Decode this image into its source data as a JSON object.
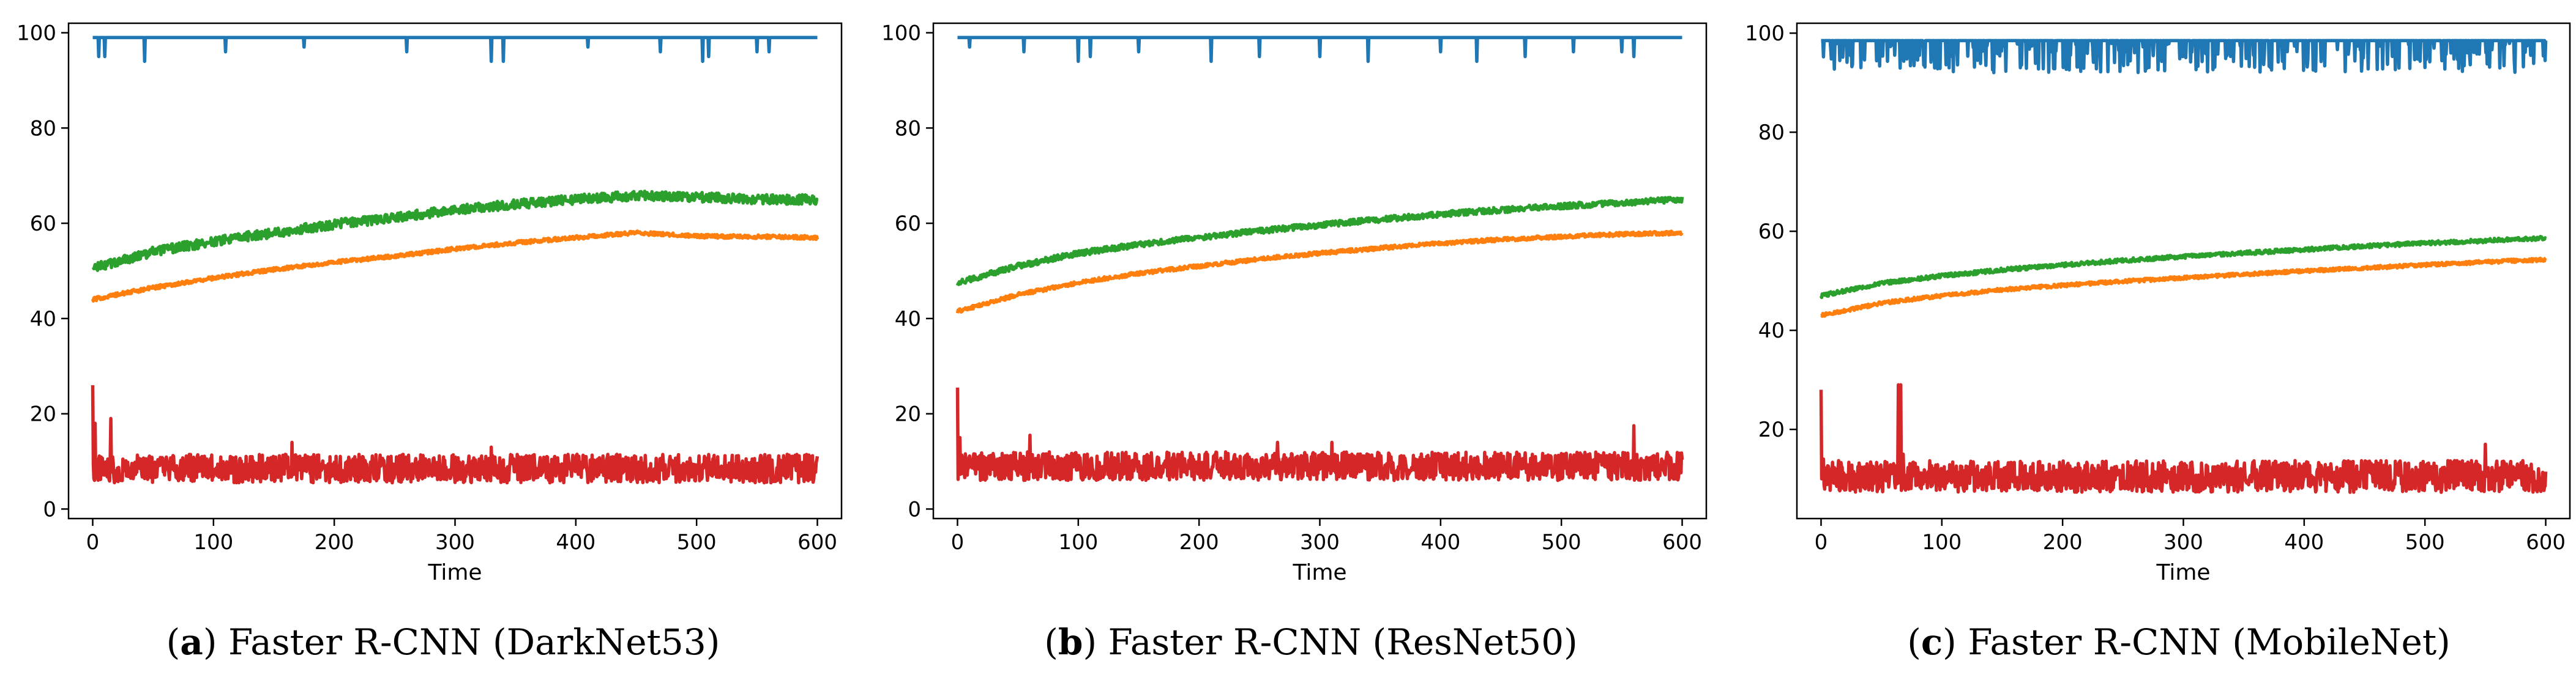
{
  "figure": {
    "series_colors": {
      "blue": "#1f77b4",
      "orange": "#ff7f0e",
      "green": "#2ca02c",
      "red": "#d62728"
    }
  },
  "chart_data": [
    {
      "type": "line",
      "panel": "a",
      "caption_label": "a",
      "caption_text": "Faster R-CNN (DarkNet53)",
      "title": "",
      "xlabel": "Time",
      "ylabel": "",
      "xlim": [
        -20,
        620
      ],
      "ylim": [
        -2,
        102
      ],
      "xticks": [
        0,
        100,
        200,
        300,
        400,
        500,
        600
      ],
      "yticks": [
        0,
        20,
        40,
        60,
        80,
        100
      ],
      "series": [
        {
          "name": "blue",
          "color": "#1f77b4",
          "base": [
            [
              0,
              99
            ],
            [
              600,
              99
            ]
          ],
          "dips": [
            [
              5,
              95
            ],
            [
              10,
              95
            ],
            [
              43,
              94
            ],
            [
              110,
              96
            ],
            [
              175,
              97
            ],
            [
              260,
              96
            ],
            [
              330,
              94
            ],
            [
              340,
              94
            ],
            [
              410,
              97
            ],
            [
              470,
              96
            ],
            [
              505,
              94
            ],
            [
              510,
              95
            ],
            [
              550,
              96
            ],
            [
              560,
              96
            ]
          ],
          "noise": 0
        },
        {
          "name": "orange",
          "color": "#ff7f0e",
          "base": [
            [
              0,
              44
            ],
            [
              50,
              46.5
            ],
            [
              100,
              48.5
            ],
            [
              150,
              50.3
            ],
            [
              200,
              51.8
            ],
            [
              250,
              53.1
            ],
            [
              300,
              54.6
            ],
            [
              350,
              55.9
            ],
            [
              400,
              57.0
            ],
            [
              450,
              58.0
            ],
            [
              500,
              57.3
            ],
            [
              550,
              57.2
            ],
            [
              600,
              57.0
            ]
          ],
          "noise": 0.4
        },
        {
          "name": "green",
          "color": "#2ca02c",
          "base": [
            [
              0,
              50.5
            ],
            [
              50,
              54.0
            ],
            [
              100,
              56.2
            ],
            [
              150,
              58.0
            ],
            [
              200,
              59.8
            ],
            [
              250,
              61.2
            ],
            [
              300,
              62.8
            ],
            [
              350,
              64.0
            ],
            [
              400,
              65.0
            ],
            [
              450,
              65.8
            ],
            [
              500,
              65.5
            ],
            [
              550,
              65.0
            ],
            [
              600,
              65.0
            ]
          ],
          "noise": 1.0
        },
        {
          "name": "red",
          "color": "#d62728",
          "base": [
            [
              0,
              8.5
            ],
            [
              600,
              8.5
            ]
          ],
          "spikes": [
            [
              0,
              26
            ],
            [
              2,
              18
            ],
            [
              15,
              19
            ],
            [
              165,
              14
            ],
            [
              330,
              13
            ]
          ],
          "noise": 3.0
        }
      ]
    },
    {
      "type": "line",
      "panel": "b",
      "caption_label": "b",
      "caption_text": "Faster R-CNN (ResNet50)",
      "title": "",
      "xlabel": "Time",
      "ylabel": "",
      "xlim": [
        -20,
        620
      ],
      "ylim": [
        -2,
        102
      ],
      "xticks": [
        0,
        100,
        200,
        300,
        400,
        500,
        600
      ],
      "yticks": [
        0,
        20,
        40,
        60,
        80,
        100
      ],
      "series": [
        {
          "name": "blue",
          "color": "#1f77b4",
          "base": [
            [
              0,
              99
            ],
            [
              600,
              99
            ]
          ],
          "dips": [
            [
              10,
              97
            ],
            [
              55,
              96
            ],
            [
              100,
              94
            ],
            [
              110,
              95
            ],
            [
              150,
              96
            ],
            [
              210,
              94
            ],
            [
              250,
              95
            ],
            [
              300,
              95
            ],
            [
              340,
              94
            ],
            [
              400,
              96
            ],
            [
              430,
              94
            ],
            [
              470,
              95
            ],
            [
              510,
              96
            ],
            [
              550,
              96
            ],
            [
              560,
              95
            ]
          ],
          "noise": 0
        },
        {
          "name": "orange",
          "color": "#ff7f0e",
          "base": [
            [
              0,
              41.5
            ],
            [
              50,
              45.0
            ],
            [
              100,
              47.5
            ],
            [
              150,
              49.5
            ],
            [
              200,
              51.0
            ],
            [
              250,
              52.5
            ],
            [
              300,
              53.7
            ],
            [
              350,
              54.8
            ],
            [
              400,
              55.8
            ],
            [
              450,
              56.6
            ],
            [
              500,
              57.2
            ],
            [
              550,
              57.7
            ],
            [
              600,
              58.0
            ]
          ],
          "noise": 0.4
        },
        {
          "name": "green",
          "color": "#2ca02c",
          "base": [
            [
              0,
              47.5
            ],
            [
              50,
              51.0
            ],
            [
              100,
              53.7
            ],
            [
              150,
              55.5
            ],
            [
              200,
              57.0
            ],
            [
              250,
              58.4
            ],
            [
              300,
              59.6
            ],
            [
              350,
              60.8
            ],
            [
              400,
              61.9
            ],
            [
              450,
              62.8
            ],
            [
              500,
              63.6
            ],
            [
              550,
              64.3
            ],
            [
              600,
              65.0
            ]
          ],
          "noise": 0.6
        },
        {
          "name": "red",
          "color": "#d62728",
          "base": [
            [
              0,
              9
            ],
            [
              600,
              9
            ]
          ],
          "spikes": [
            [
              0,
              25.5
            ],
            [
              2,
              15
            ],
            [
              60,
              15.5
            ],
            [
              265,
              14
            ],
            [
              310,
              14
            ],
            [
              560,
              17.5
            ]
          ],
          "noise": 3.0
        }
      ]
    },
    {
      "type": "line",
      "panel": "c",
      "caption_label": "c",
      "caption_text": "Faster R-CNN (MobileNet)",
      "title": "",
      "xlabel": "Time",
      "ylabel": "",
      "xlim": [
        -20,
        620
      ],
      "ylim": [
        2,
        102
      ],
      "xticks": [
        0,
        100,
        200,
        300,
        400,
        500,
        600
      ],
      "yticks": [
        20,
        40,
        60,
        80,
        100
      ],
      "series": [
        {
          "name": "blue",
          "color": "#1f77b4",
          "base": [
            [
              0,
              98.5
            ],
            [
              600,
              98.5
            ]
          ],
          "dips": [],
          "denseDips": true,
          "noise": 0
        },
        {
          "name": "orange",
          "color": "#ff7f0e",
          "base": [
            [
              0,
              43.0
            ],
            [
              50,
              45.5
            ],
            [
              100,
              47.0
            ],
            [
              150,
              48.2
            ],
            [
              200,
              49.1
            ],
            [
              250,
              49.9
            ],
            [
              300,
              50.6
            ],
            [
              350,
              51.3
            ],
            [
              400,
              52.0
            ],
            [
              450,
              52.6
            ],
            [
              500,
              53.2
            ],
            [
              550,
              53.8
            ],
            [
              600,
              54.3
            ]
          ],
          "noise": 0.35
        },
        {
          "name": "green",
          "color": "#2ca02c",
          "base": [
            [
              0,
              47.0
            ],
            [
              50,
              49.5
            ],
            [
              100,
              51.0
            ],
            [
              150,
              52.2
            ],
            [
              200,
              53.2
            ],
            [
              250,
              54.1
            ],
            [
              300,
              54.9
            ],
            [
              350,
              55.6
            ],
            [
              400,
              56.3
            ],
            [
              450,
              57.0
            ],
            [
              500,
              57.6
            ],
            [
              550,
              58.1
            ],
            [
              600,
              58.6
            ]
          ],
          "noise": 0.4
        },
        {
          "name": "red",
          "color": "#d62728",
          "base": [
            [
              0,
              10.5
            ],
            [
              600,
              10.5
            ]
          ],
          "spikes": [
            [
              0,
              28
            ],
            [
              2,
              14
            ],
            [
              64,
              29
            ],
            [
              66,
              29
            ],
            [
              68,
              15
            ],
            [
              550,
              17
            ]
          ],
          "noise": 3.2
        }
      ]
    }
  ]
}
